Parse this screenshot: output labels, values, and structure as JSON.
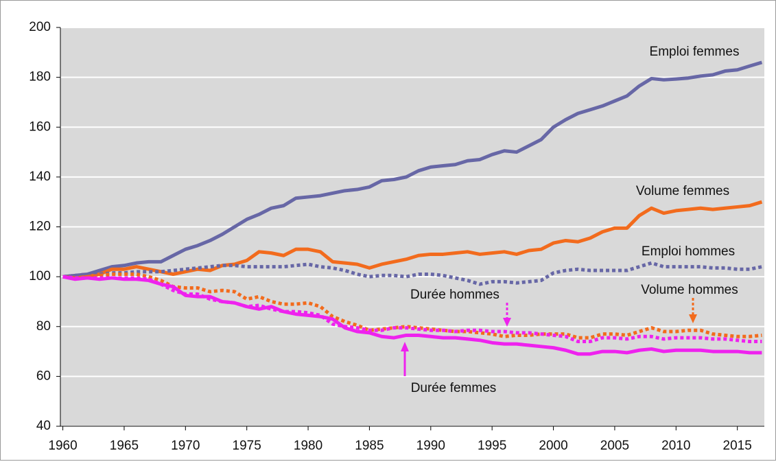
{
  "chart_data": {
    "type": "line",
    "x": [
      1960,
      1961,
      1962,
      1963,
      1964,
      1965,
      1966,
      1967,
      1968,
      1969,
      1970,
      1971,
      1972,
      1973,
      1974,
      1975,
      1976,
      1977,
      1978,
      1979,
      1980,
      1981,
      1982,
      1983,
      1984,
      1985,
      1986,
      1987,
      1988,
      1989,
      1990,
      1991,
      1992,
      1993,
      1994,
      1995,
      1996,
      1997,
      1998,
      1999,
      2000,
      2001,
      2002,
      2003,
      2004,
      2005,
      2006,
      2007,
      2008,
      2009,
      2010,
      2011,
      2012,
      2013,
      2014,
      2015,
      2016,
      2017
    ],
    "xlim": [
      1959.8,
      2017.2
    ],
    "xticks": [
      1960,
      1965,
      1970,
      1975,
      1980,
      1985,
      1990,
      1995,
      2000,
      2005,
      2010,
      2015
    ],
    "ylim": [
      40,
      200
    ],
    "yticks": [
      40,
      60,
      80,
      100,
      120,
      140,
      160,
      180,
      200
    ],
    "grid": true,
    "series": [
      {
        "name": "Emploi femmes",
        "color": "#6767a6",
        "dash": false,
        "values": [
          100,
          100.5,
          101,
          102.5,
          104,
          104.5,
          105.5,
          106,
          106,
          108.5,
          111,
          112.5,
          114.5,
          117,
          120,
          123,
          125,
          127.5,
          128.5,
          131.5,
          132,
          132.5,
          133.5,
          134.5,
          135,
          136,
          138.5,
          139,
          140,
          142.5,
          144,
          144.5,
          145,
          146.5,
          147,
          149,
          150.5,
          150,
          152.5,
          155,
          160,
          163,
          165.5,
          167,
          168.5,
          170.5,
          172.5,
          176.5,
          179.5,
          179,
          179.3,
          179.7,
          180.5,
          181,
          182.5,
          183,
          184.5,
          186
        ]
      },
      {
        "name": "Volume femmes",
        "color": "#f26b1d",
        "dash": false,
        "values": [
          100,
          99.5,
          100,
          101,
          103,
          103,
          104,
          103,
          102,
          101,
          102,
          103,
          102.5,
          104.5,
          105,
          106.5,
          110,
          109.5,
          108.5,
          111,
          111,
          110,
          106,
          105.5,
          105,
          103.5,
          105,
          106,
          107,
          108.5,
          109,
          109,
          109.5,
          110,
          109,
          109.5,
          110,
          109,
          110.5,
          111,
          113.5,
          114.5,
          114,
          115.5,
          118,
          119.5,
          119.5,
          124.5,
          127.5,
          125.5,
          126.5,
          127,
          127.5,
          127,
          127.5,
          128,
          128.5,
          130
        ]
      },
      {
        "name": "Emploi hommes",
        "color": "#6767a6",
        "dash": true,
        "values": [
          100,
          100.5,
          101,
          101,
          101.5,
          101.5,
          102,
          102,
          102,
          102.5,
          103,
          103.5,
          104,
          104.5,
          104.5,
          104,
          104,
          104,
          104,
          104.5,
          105,
          104,
          103.5,
          102.5,
          101,
          100,
          100.5,
          100.5,
          100,
          101,
          101,
          100.5,
          99.5,
          98.5,
          97,
          98,
          98,
          97.5,
          98,
          98.5,
          101.5,
          102.5,
          103,
          102.5,
          102.5,
          102.5,
          102.5,
          104,
          105.5,
          104,
          104,
          104,
          104,
          103.5,
          103.5,
          103,
          103,
          104
        ]
      },
      {
        "name": "Volume hommes",
        "color": "#f26b1d",
        "dash": true,
        "values": [
          100,
          99.5,
          100,
          100.5,
          101,
          101,
          101,
          100,
          98.5,
          96,
          95.5,
          95.5,
          94,
          94.5,
          94,
          91,
          92,
          90,
          89,
          89,
          89.5,
          88,
          84,
          82,
          80.5,
          78.5,
          79,
          79.5,
          80,
          79.5,
          79,
          78.5,
          78,
          78,
          77.5,
          77,
          76,
          76.5,
          76.5,
          77,
          77,
          77,
          75.5,
          75.5,
          77,
          77,
          76.5,
          78,
          79.5,
          78,
          78,
          78.5,
          78.5,
          77,
          76.5,
          76,
          76,
          76.5
        ]
      },
      {
        "name": "Durée hommes",
        "color": "#ee22ee",
        "dash": true,
        "values": [
          100,
          99.5,
          99.5,
          99.5,
          99.5,
          99.5,
          99.5,
          99,
          97,
          94.5,
          93,
          93,
          91,
          90,
          89.5,
          88,
          88.5,
          87,
          86,
          86,
          85.5,
          84.5,
          81,
          80,
          79.5,
          78.5,
          78.5,
          79.5,
          79.5,
          79,
          78.5,
          78.5,
          78,
          78.5,
          78.5,
          78,
          78,
          77.5,
          77.5,
          77,
          76.5,
          76,
          74,
          74,
          75.5,
          75.5,
          75,
          76,
          76,
          75,
          75.5,
          75.5,
          75.5,
          75,
          75,
          74.5,
          74,
          74
        ]
      },
      {
        "name": "Durée femmes",
        "color": "#ee22ee",
        "dash": false,
        "values": [
          100,
          99,
          99.5,
          99,
          99.5,
          99,
          99,
          98.5,
          97,
          96,
          92.5,
          92,
          92,
          90,
          89.5,
          88,
          87,
          88,
          86,
          85,
          84.5,
          84,
          83,
          79.5,
          78,
          77.5,
          76,
          75.5,
          76.5,
          76.5,
          76,
          75.5,
          75.5,
          75,
          74.5,
          73.5,
          73,
          73,
          72.5,
          72,
          71.5,
          70.5,
          69,
          69,
          70,
          70,
          69.5,
          70.5,
          71,
          70,
          70.5,
          70.5,
          70.5,
          70,
          70,
          70,
          69.5,
          69.5
        ]
      }
    ]
  }
}
